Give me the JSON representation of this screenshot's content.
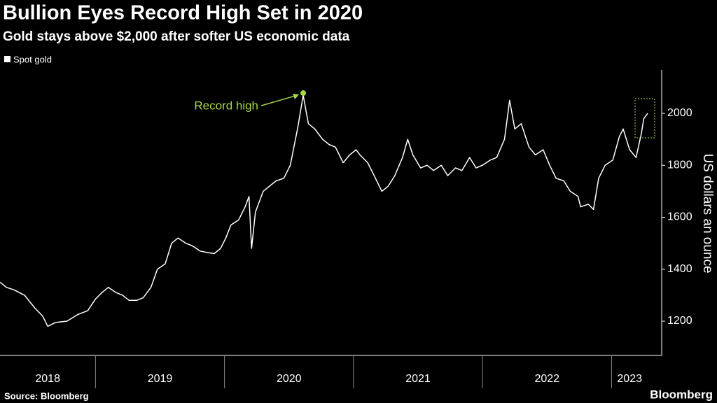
{
  "chart_data": {
    "type": "line",
    "title": "Bullion Eyes Record High Set in 2020",
    "subtitle": "Gold stays above $2,000 after softer US economic data",
    "y_axis_label": "US dollars an ounce",
    "source": "Source: Bloomberg",
    "brand": "Bloomberg",
    "x": [
      2018.26,
      2018.31,
      2018.37,
      2018.45,
      2018.53,
      2018.59,
      2018.63,
      2018.69,
      2018.78,
      2018.86,
      2018.94,
      2019.0,
      2019.05,
      2019.1,
      2019.16,
      2019.21,
      2019.26,
      2019.32,
      2019.37,
      2019.43,
      2019.48,
      2019.54,
      2019.59,
      2019.64,
      2019.7,
      2019.75,
      2019.81,
      2019.86,
      2019.92,
      2019.97,
      2020.01,
      2020.05,
      2020.11,
      2020.16,
      2020.19,
      2020.21,
      2020.24,
      2020.3,
      2020.35,
      2020.4,
      2020.46,
      2020.51,
      2020.57,
      2020.61,
      2020.65,
      2020.7,
      2020.76,
      2020.81,
      2020.86,
      2020.92,
      2020.97,
      2021.02,
      2021.05,
      2021.11,
      2021.16,
      2021.22,
      2021.27,
      2021.32,
      2021.38,
      2021.42,
      2021.46,
      2021.52,
      2021.57,
      2021.62,
      2021.68,
      2021.73,
      2021.79,
      2021.84,
      2021.9,
      2021.95,
      2022.0,
      2022.06,
      2022.11,
      2022.17,
      2022.21,
      2022.25,
      2022.3,
      2022.36,
      2022.41,
      2022.47,
      2022.52,
      2022.57,
      2022.63,
      2022.68,
      2022.74,
      2022.76,
      2022.82,
      2022.86,
      2022.9,
      2022.95,
      2023.01,
      2023.06,
      2023.09,
      2023.14,
      2023.19,
      2023.23,
      2023.25,
      2023.28
    ],
    "series": [
      {
        "name": "Spot gold",
        "color": "#ffffff",
        "values": [
          1350,
          1330,
          1320,
          1300,
          1250,
          1220,
          1180,
          1195,
          1200,
          1225,
          1240,
          1285,
          1310,
          1330,
          1310,
          1300,
          1280,
          1280,
          1290,
          1330,
          1400,
          1420,
          1500,
          1520,
          1500,
          1490,
          1470,
          1465,
          1460,
          1480,
          1520,
          1570,
          1590,
          1640,
          1680,
          1480,
          1620,
          1700,
          1720,
          1740,
          1750,
          1800,
          1950,
          2070,
          1960,
          1940,
          1900,
          1880,
          1870,
          1810,
          1840,
          1860,
          1840,
          1810,
          1760,
          1700,
          1720,
          1760,
          1830,
          1900,
          1840,
          1790,
          1800,
          1780,
          1800,
          1760,
          1790,
          1780,
          1830,
          1790,
          1800,
          1820,
          1830,
          1900,
          2050,
          1940,
          1960,
          1870,
          1840,
          1860,
          1800,
          1750,
          1740,
          1700,
          1680,
          1640,
          1650,
          1630,
          1750,
          1800,
          1820,
          1910,
          1940,
          1860,
          1830,
          1920,
          1980,
          2000
        ]
      }
    ],
    "xlim": [
      2018.26,
      2023.28
    ],
    "xticks": [
      {
        "value": 2018.63,
        "label": "2018"
      },
      {
        "value": 2019.5,
        "label": "2019"
      },
      {
        "value": 2020.5,
        "label": "2020"
      },
      {
        "value": 2021.5,
        "label": "2021"
      },
      {
        "value": 2022.5,
        "label": "2022"
      },
      {
        "value": 2023.14,
        "label": "2023"
      }
    ],
    "year_dividers": [
      2019,
      2020,
      2021,
      2022,
      2023
    ],
    "ylim": [
      1068,
      2167
    ],
    "yticks": [
      1200,
      1400,
      1600,
      1800,
      2000
    ],
    "annotations": [
      {
        "text": "Record high",
        "x": 2020.61,
        "y": 2078,
        "color": "#a6d94b"
      }
    ]
  }
}
